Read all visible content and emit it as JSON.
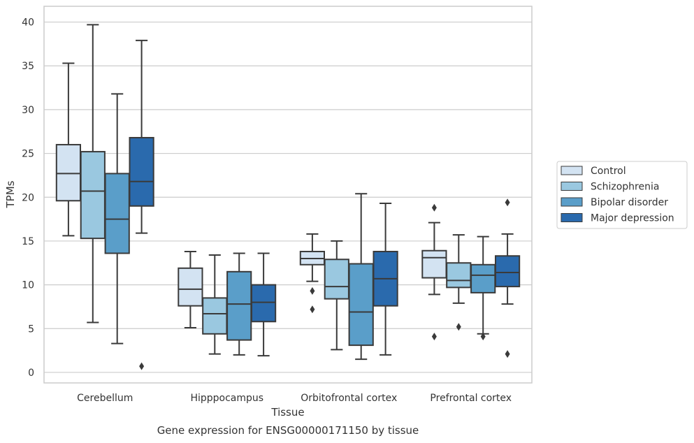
{
  "chart_data": {
    "type": "box",
    "xlabel": "Tissue",
    "ylabel": "TPMs",
    "caption": "Gene expression for ENSG00000171150 by tissue",
    "ylim": [
      -1.2,
      41.8
    ],
    "yticks": [
      0,
      5,
      10,
      15,
      20,
      25,
      30,
      35,
      40
    ],
    "grid": "horizontal",
    "legend_placement": "right",
    "categories": [
      "Cerebellum",
      "Hipppocampus",
      "Orbitofrontal cortex",
      "Prefrontal cortex"
    ],
    "series": [
      {
        "name": "Control",
        "color": "#d3e3f2",
        "boxes": [
          {
            "whislo": 15.6,
            "q1": 19.6,
            "med": 22.7,
            "q3": 26.0,
            "whishi": 35.3,
            "fliers": []
          },
          {
            "whislo": 5.1,
            "q1": 7.6,
            "med": 9.5,
            "q3": 11.9,
            "whishi": 13.8,
            "fliers": []
          },
          {
            "whislo": 10.4,
            "q1": 12.3,
            "med": 13.0,
            "q3": 13.8,
            "whishi": 15.8,
            "fliers": [
              9.3,
              7.2
            ]
          },
          {
            "whislo": 8.9,
            "q1": 10.8,
            "med": 13.1,
            "q3": 13.9,
            "whishi": 17.1,
            "fliers": [
              18.8,
              4.1
            ]
          }
        ]
      },
      {
        "name": "Schizophrenia",
        "color": "#9ac8e0",
        "boxes": [
          {
            "whislo": 5.7,
            "q1": 15.3,
            "med": 20.7,
            "q3": 25.2,
            "whishi": 39.7,
            "fliers": []
          },
          {
            "whislo": 2.1,
            "q1": 4.4,
            "med": 6.7,
            "q3": 8.5,
            "whishi": 13.4,
            "fliers": []
          },
          {
            "whislo": 2.6,
            "q1": 8.4,
            "med": 9.8,
            "q3": 12.9,
            "whishi": 15.0,
            "fliers": []
          },
          {
            "whislo": 7.9,
            "q1": 9.7,
            "med": 10.5,
            "q3": 12.5,
            "whishi": 15.7,
            "fliers": [
              5.2
            ]
          }
        ]
      },
      {
        "name": "Bipolar disorder",
        "color": "#5a9ec9",
        "boxes": [
          {
            "whislo": 3.3,
            "q1": 13.6,
            "med": 17.5,
            "q3": 22.7,
            "whishi": 31.8,
            "fliers": []
          },
          {
            "whislo": 2.0,
            "q1": 3.7,
            "med": 7.8,
            "q3": 11.5,
            "whishi": 13.6,
            "fliers": []
          },
          {
            "whislo": 1.5,
            "q1": 3.1,
            "med": 6.9,
            "q3": 12.4,
            "whishi": 20.4,
            "fliers": []
          },
          {
            "whislo": 4.4,
            "q1": 9.1,
            "med": 11.1,
            "q3": 12.3,
            "whishi": 15.5,
            "fliers": [
              4.1
            ]
          }
        ]
      },
      {
        "name": "Major depression",
        "color": "#2a6aad",
        "boxes": [
          {
            "whislo": 15.9,
            "q1": 19.0,
            "med": 21.8,
            "q3": 26.8,
            "whishi": 37.9,
            "fliers": [
              0.7
            ]
          },
          {
            "whislo": 1.9,
            "q1": 5.8,
            "med": 8.0,
            "q3": 10.0,
            "whishi": 13.6,
            "fliers": []
          },
          {
            "whislo": 2.0,
            "q1": 7.6,
            "med": 10.7,
            "q3": 13.8,
            "whishi": 19.3,
            "fliers": []
          },
          {
            "whislo": 7.8,
            "q1": 9.8,
            "med": 11.4,
            "q3": 13.3,
            "whishi": 15.8,
            "fliers": [
              19.4,
              2.1
            ]
          }
        ]
      }
    ]
  }
}
